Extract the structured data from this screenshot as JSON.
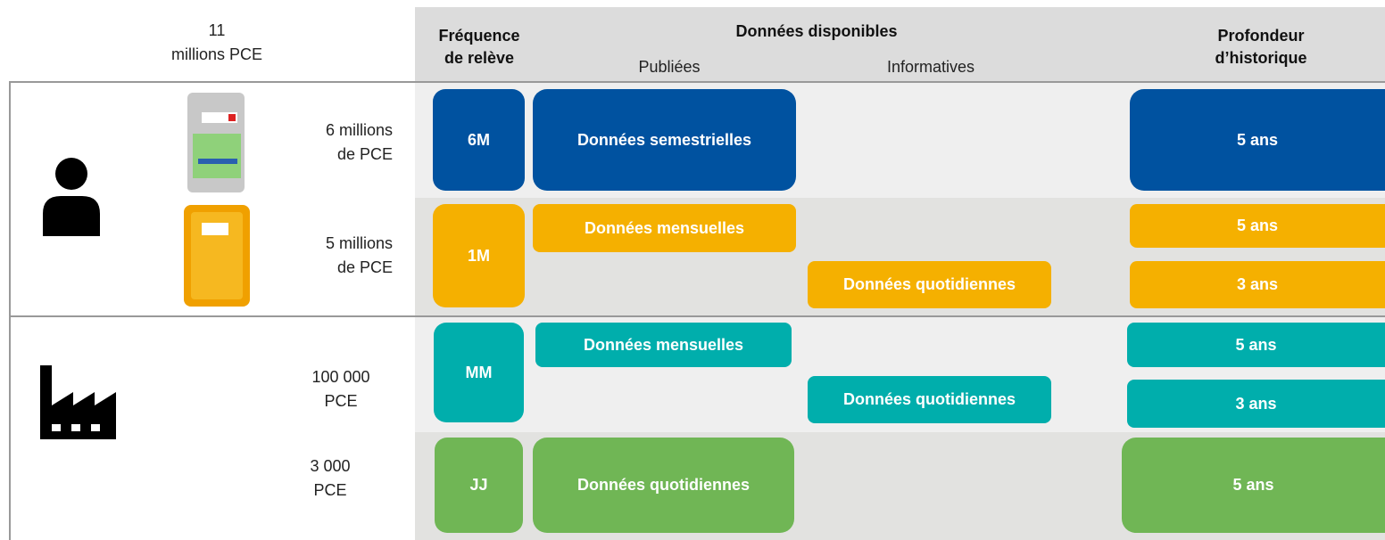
{
  "header": {
    "total": [
      "11",
      "millions PCE"
    ],
    "frequency": [
      "Fréquence",
      "de relève"
    ],
    "available": "Données disponibles",
    "published": "Publiées",
    "informative": "Informatives",
    "depth": [
      "Profondeur",
      "d’historique"
    ]
  },
  "segments": [
    {
      "label": [
        "6 millions",
        "de PCE"
      ]
    },
    {
      "label": [
        "5 millions",
        "de PCE"
      ]
    },
    {
      "label": [
        "100 000",
        "PCE"
      ]
    },
    {
      "label": [
        "3 000",
        "PCE"
      ]
    }
  ],
  "rows": [
    {
      "frequency": "6M",
      "published": [
        "Données semestrielles"
      ],
      "informative": [],
      "depth": [
        "5 ans"
      ]
    },
    {
      "frequency": "1M",
      "published": [
        "Données mensuelles"
      ],
      "informative": [
        "Données quotidiennes"
      ],
      "depth": [
        "5 ans",
        "3 ans"
      ]
    },
    {
      "frequency": "MM",
      "published": [
        "Données mensuelles"
      ],
      "informative": [
        "Données quotidiennes"
      ],
      "depth": [
        "5 ans",
        "3 ans"
      ]
    },
    {
      "frequency": "JJ",
      "published": [
        "Données quotidiennes"
      ],
      "informative": [],
      "depth": [
        "5 ans"
      ]
    }
  ]
}
